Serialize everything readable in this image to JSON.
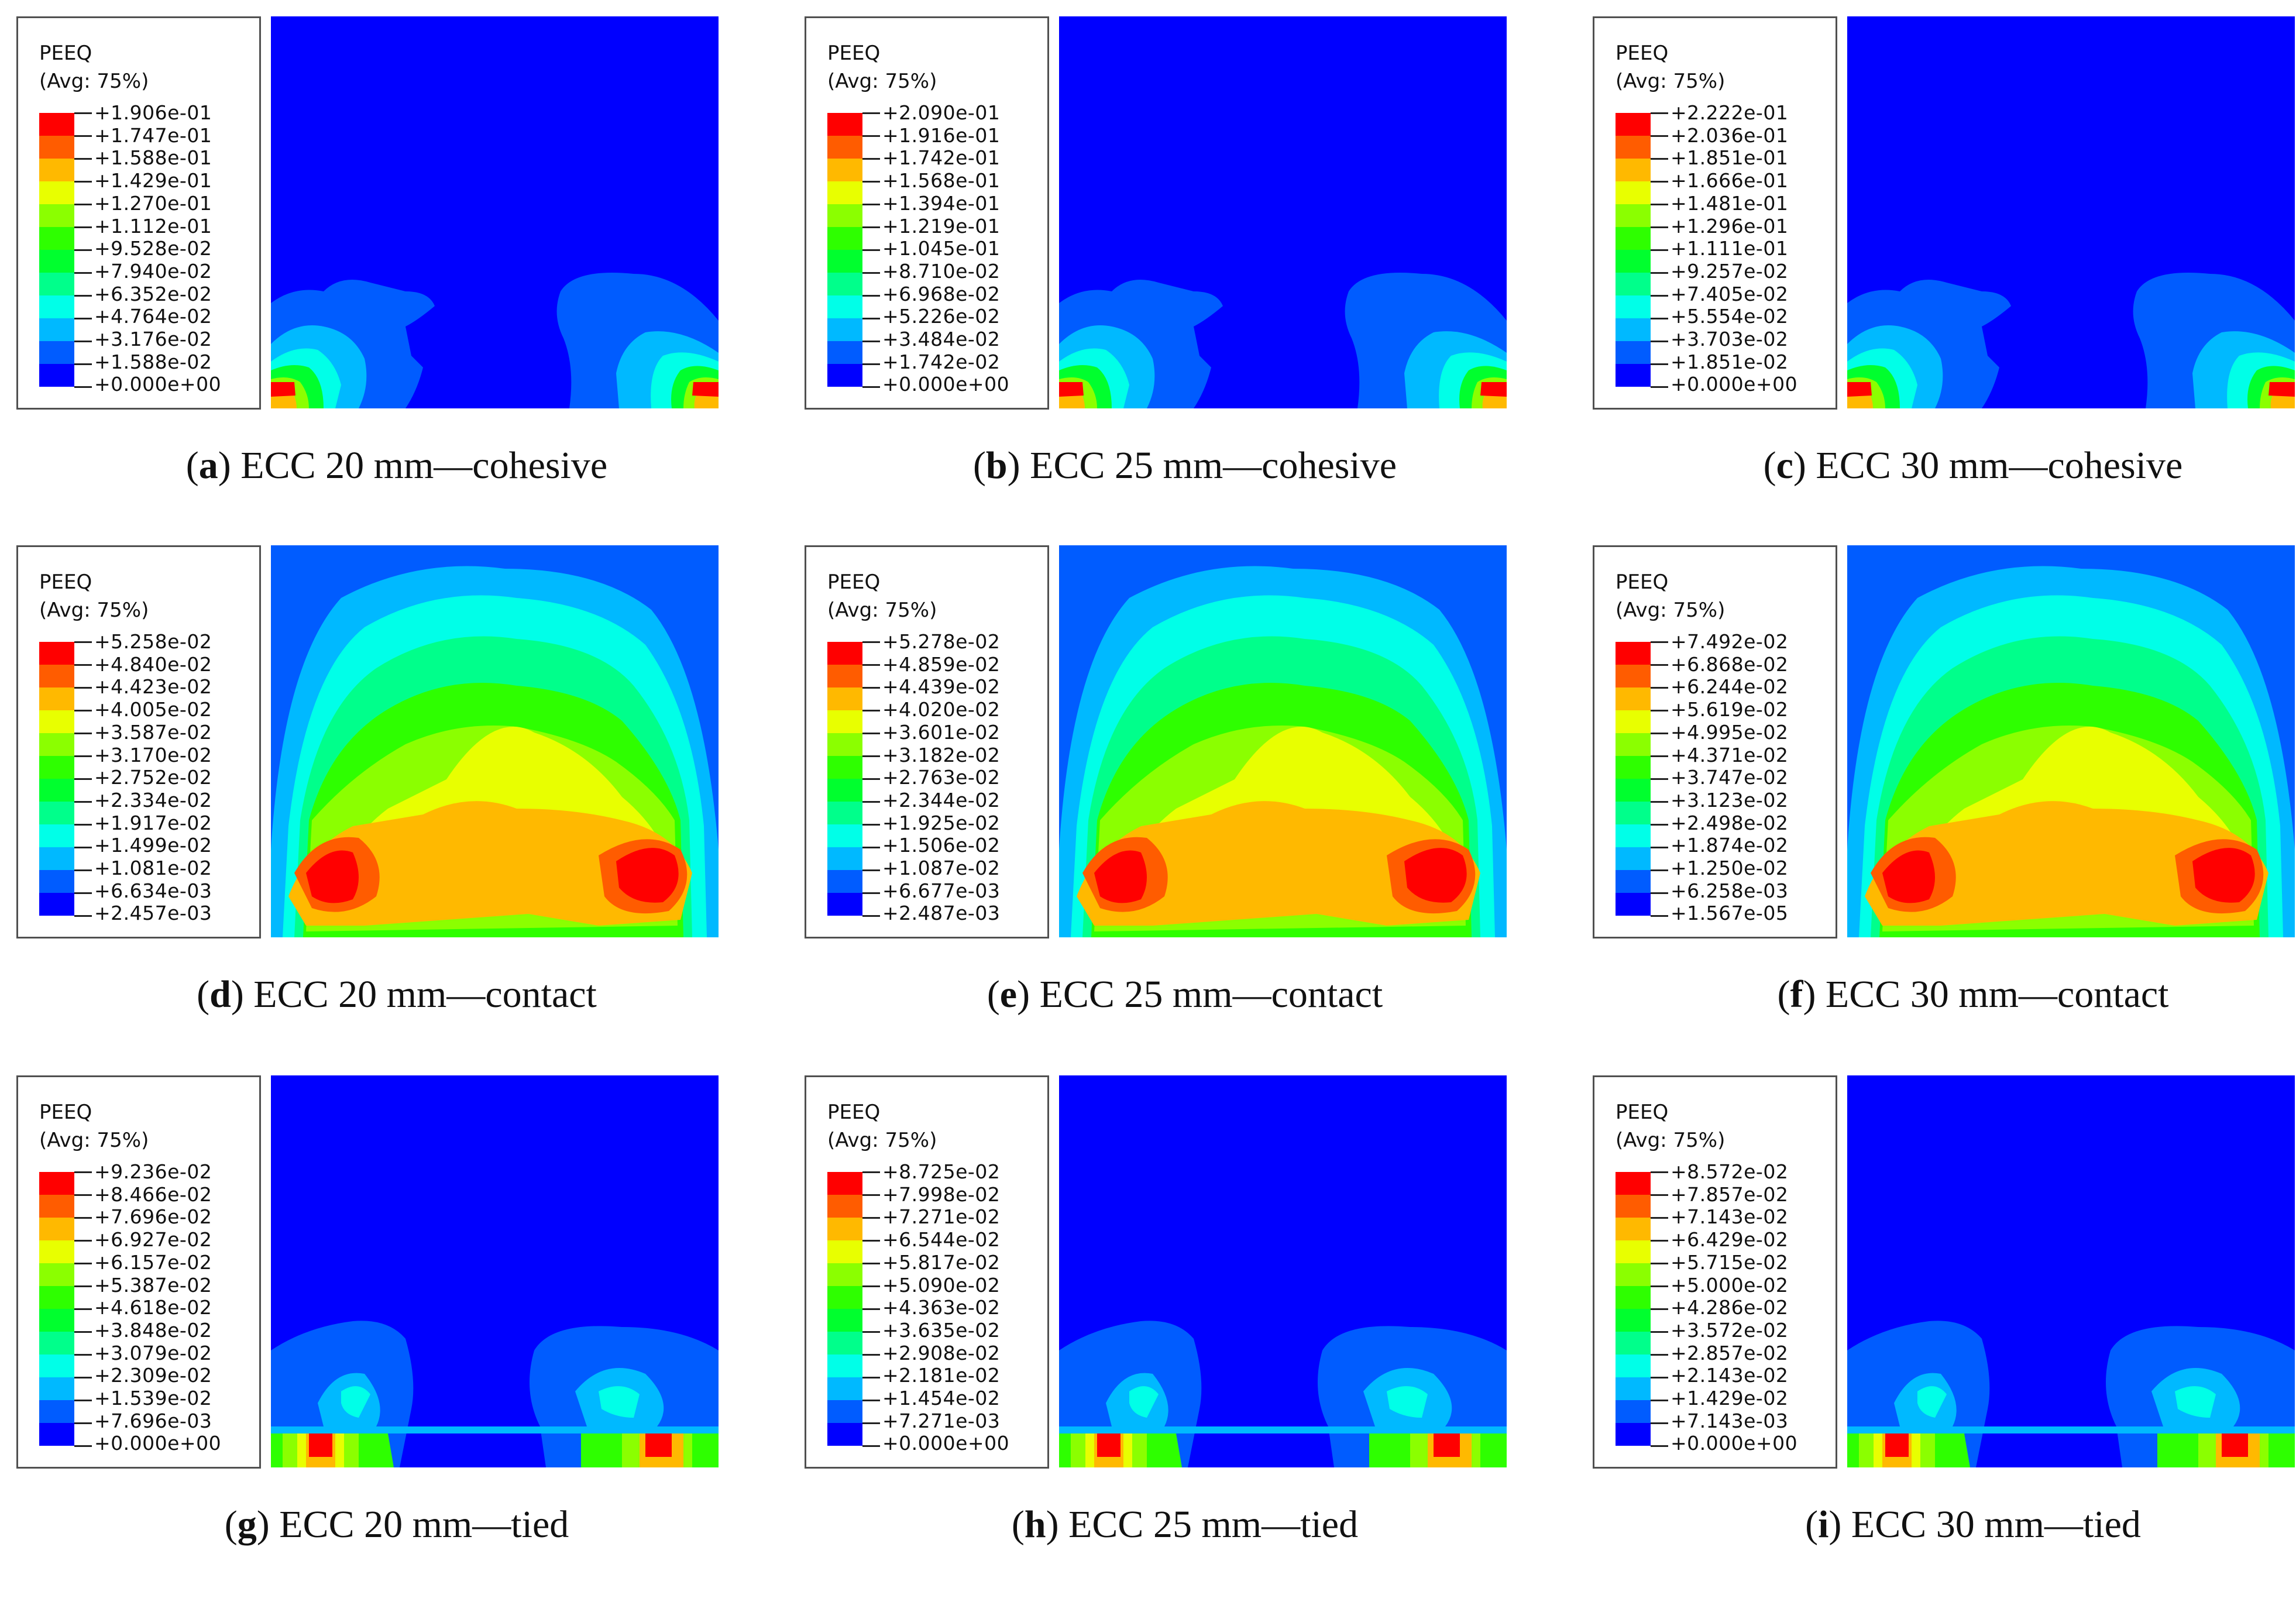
{
  "figure": {
    "colors": {
      "scale": [
        "#0000ff",
        "#005cff",
        "#00b9ff",
        "#00ffe8",
        "#00ff8b",
        "#00ff2e",
        "#2eff00",
        "#8bff00",
        "#e8ff00",
        "#ffb900",
        "#ff5c00",
        "#ff0000"
      ],
      "background_low": "#0000ff"
    },
    "panels": [
      {
        "letter": "a",
        "caption": "ECC 20 mm—cohesive",
        "model": "cohesive",
        "legend": {
          "variable": "PEEQ",
          "averaging": "(Avg: 75%)",
          "values": [
            "+1.906e-01",
            "+1.747e-01",
            "+1.588e-01",
            "+1.429e-01",
            "+1.270e-01",
            "+1.112e-01",
            "+9.528e-02",
            "+7.940e-02",
            "+6.352e-02",
            "+4.764e-02",
            "+3.176e-02",
            "+1.588e-02",
            "+0.000e+00"
          ]
        }
      },
      {
        "letter": "b",
        "caption": "ECC 25 mm—cohesive",
        "model": "cohesive",
        "legend": {
          "variable": "PEEQ",
          "averaging": "(Avg: 75%)",
          "values": [
            "+2.090e-01",
            "+1.916e-01",
            "+1.742e-01",
            "+1.568e-01",
            "+1.394e-01",
            "+1.219e-01",
            "+1.045e-01",
            "+8.710e-02",
            "+6.968e-02",
            "+5.226e-02",
            "+3.484e-02",
            "+1.742e-02",
            "+0.000e+00"
          ]
        }
      },
      {
        "letter": "c",
        "caption": "ECC 30 mm—cohesive",
        "model": "cohesive",
        "legend": {
          "variable": "PEEQ",
          "averaging": "(Avg: 75%)",
          "values": [
            "+2.222e-01",
            "+2.036e-01",
            "+1.851e-01",
            "+1.666e-01",
            "+1.481e-01",
            "+1.296e-01",
            "+1.111e-01",
            "+9.257e-02",
            "+7.405e-02",
            "+5.554e-02",
            "+3.703e-02",
            "+1.851e-02",
            "+0.000e+00"
          ]
        }
      },
      {
        "letter": "d",
        "caption": "ECC 20 mm—contact",
        "model": "contact",
        "legend": {
          "variable": "PEEQ",
          "averaging": "(Avg: 75%)",
          "values": [
            "+5.258e-02",
            "+4.840e-02",
            "+4.423e-02",
            "+4.005e-02",
            "+3.587e-02",
            "+3.170e-02",
            "+2.752e-02",
            "+2.334e-02",
            "+1.917e-02",
            "+1.499e-02",
            "+1.081e-02",
            "+6.634e-03",
            "+2.457e-03"
          ]
        }
      },
      {
        "letter": "e",
        "caption": "ECC 25 mm—contact",
        "model": "contact",
        "legend": {
          "variable": "PEEQ",
          "averaging": "(Avg: 75%)",
          "values": [
            "+5.278e-02",
            "+4.859e-02",
            "+4.439e-02",
            "+4.020e-02",
            "+3.601e-02",
            "+3.182e-02",
            "+2.763e-02",
            "+2.344e-02",
            "+1.925e-02",
            "+1.506e-02",
            "+1.087e-02",
            "+6.677e-03",
            "+2.487e-03"
          ]
        }
      },
      {
        "letter": "f",
        "caption": "ECC 30 mm—contact",
        "model": "contact",
        "legend": {
          "variable": "PEEQ",
          "averaging": "(Avg: 75%)",
          "values": [
            "+7.492e-02",
            "+6.868e-02",
            "+6.244e-02",
            "+5.619e-02",
            "+4.995e-02",
            "+4.371e-02",
            "+3.747e-02",
            "+3.123e-02",
            "+2.498e-02",
            "+1.874e-02",
            "+1.250e-02",
            "+6.258e-03",
            "+1.567e-05"
          ]
        }
      },
      {
        "letter": "g",
        "caption": "ECC 20 mm—tied",
        "model": "tied",
        "legend": {
          "variable": "PEEQ",
          "averaging": "(Avg: 75%)",
          "values": [
            "+9.236e-02",
            "+8.466e-02",
            "+7.696e-02",
            "+6.927e-02",
            "+6.157e-02",
            "+5.387e-02",
            "+4.618e-02",
            "+3.848e-02",
            "+3.079e-02",
            "+2.309e-02",
            "+1.539e-02",
            "+7.696e-03",
            "+0.000e+00"
          ]
        }
      },
      {
        "letter": "h",
        "caption": "ECC 25 mm—tied",
        "model": "tied",
        "legend": {
          "variable": "PEEQ",
          "averaging": "(Avg: 75%)",
          "values": [
            "+8.725e-02",
            "+7.998e-02",
            "+7.271e-02",
            "+6.544e-02",
            "+5.817e-02",
            "+5.090e-02",
            "+4.363e-02",
            "+3.635e-02",
            "+2.908e-02",
            "+2.181e-02",
            "+1.454e-02",
            "+7.271e-03",
            "+0.000e+00"
          ]
        }
      },
      {
        "letter": "i",
        "caption": "ECC 30 mm—tied",
        "model": "tied",
        "legend": {
          "variable": "PEEQ",
          "averaging": "(Avg: 75%)",
          "values": [
            "+8.572e-02",
            "+7.857e-02",
            "+7.143e-02",
            "+6.429e-02",
            "+5.715e-02",
            "+5.000e-02",
            "+4.286e-02",
            "+3.572e-02",
            "+2.857e-02",
            "+2.143e-02",
            "+1.429e-02",
            "+7.143e-03",
            "+0.000e+00"
          ]
        }
      }
    ]
  }
}
